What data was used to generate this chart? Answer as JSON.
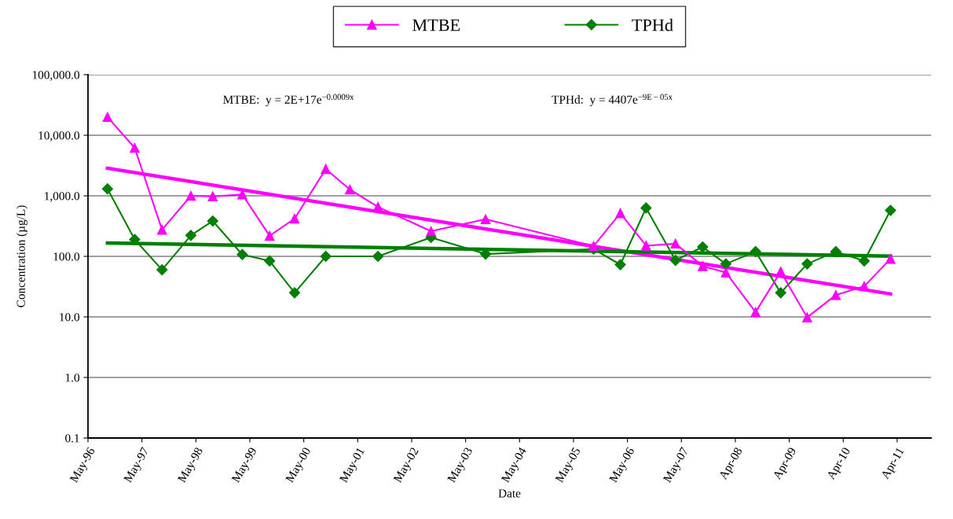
{
  "chart_data": {
    "type": "line",
    "xlabel": "Date",
    "ylabel": "Concentration (µg/L)",
    "series": [
      {
        "name": "MTBE",
        "color": "#ff00ff",
        "marker": "triangle",
        "x": [
          "1996-09-12",
          "1997-03-15",
          "1997-09-16",
          "1998-03-30",
          "1998-08-25",
          "1999-03-13",
          "1999-09-14",
          "2000-03-01",
          "2000-09-28",
          "2001-03-10",
          "2001-09-16",
          "2002-09-10",
          "2003-09-14",
          "2005-09-14",
          "2006-03-14",
          "2006-09-04",
          "2007-03-22",
          "2007-09-22",
          "2008-02-26",
          "2008-09-14",
          "2009-03-03",
          "2009-08-29",
          "2010-03-11",
          "2010-09-19",
          "2011-03-16"
        ],
        "values": [
          20000,
          6200,
          275,
          1000,
          980,
          1050,
          218,
          420,
          2770,
          1270,
          655,
          260,
          410,
          148,
          515,
          150,
          162,
          69,
          54,
          12,
          56,
          9.8,
          23,
          32,
          91
        ]
      },
      {
        "name": "TPHd",
        "color": "#007f00",
        "marker": "diamond",
        "x": [
          "1996-09-12",
          "1997-03-15",
          "1997-09-16",
          "1998-03-30",
          "1998-08-25",
          "1999-03-13",
          "1999-09-14",
          "2000-03-01",
          "2000-09-28",
          "2001-09-16",
          "2002-09-10",
          "2003-09-14",
          "2005-09-14",
          "2006-03-14",
          "2006-09-04",
          "2007-03-22",
          "2007-09-22",
          "2008-02-26",
          "2008-09-14",
          "2009-03-03",
          "2009-08-29",
          "2010-03-11",
          "2010-09-19",
          "2011-03-16"
        ],
        "values": [
          1300,
          190,
          60,
          222,
          384,
          107,
          84,
          25,
          100,
          100,
          205,
          109,
          132,
          73,
          630,
          86,
          143,
          75,
          120,
          25,
          75,
          120,
          84,
          575
        ]
      },
      {
        "color": "#ff00ff",
        "marker": "none",
        "x": [
          "1996-09-12",
          "2011-03-16"
        ],
        "values": [
          2850,
          24
        ]
      },
      {
        "color": "#007f00",
        "marker": "none",
        "x": [
          "1996-09-12",
          "2011-03-16"
        ],
        "values": [
          166,
          101
        ]
      }
    ],
    "log": "y",
    "ylim": [
      0.1,
      100000
    ],
    "yticks": [
      {
        "value": 0.1,
        "label": "0.1"
      },
      {
        "value": 1,
        "label": "1.0"
      },
      {
        "value": 10,
        "label": "10.0"
      },
      {
        "value": 100,
        "label": "100.0"
      },
      {
        "value": 1000,
        "label": "1,000.0"
      },
      {
        "value": 10000,
        "label": "10,000.0"
      },
      {
        "value": 100000,
        "label": "100,000.0"
      }
    ],
    "xlim": [
      "1996-05-03",
      "2011-12-15"
    ],
    "xticks": [
      {
        "value": "1996-05-03",
        "label": "May-96"
      },
      {
        "value": "1997-05-03",
        "label": "May-97"
      },
      {
        "value": "1998-05-03",
        "label": "May-98"
      },
      {
        "value": "1999-05-03",
        "label": "May-99"
      },
      {
        "value": "2000-05-02",
        "label": "May-00"
      },
      {
        "value": "2001-05-02",
        "label": "May-01"
      },
      {
        "value": "2002-05-02",
        "label": "May-02"
      },
      {
        "value": "2003-05-02",
        "label": "May-03"
      },
      {
        "value": "2004-05-01",
        "label": "May-04"
      },
      {
        "value": "2005-05-01",
        "label": "May-05"
      },
      {
        "value": "2006-05-01",
        "label": "May-06"
      },
      {
        "value": "2007-05-01",
        "label": "May-07"
      },
      {
        "value": "2008-04-30",
        "label": "Apr-08"
      },
      {
        "value": "2009-04-30",
        "label": "Apr-09"
      },
      {
        "value": "2010-04-30",
        "label": "Apr-10"
      },
      {
        "value": "2011-04-30",
        "label": "Apr-11"
      }
    ],
    "grid": "y",
    "legend": "top",
    "annotations": [
      "MTBE:  y = 2E+17e$^{−0.0009x}$",
      "TPHd:  y = 4407e$^{−9E−05x}$"
    ]
  }
}
